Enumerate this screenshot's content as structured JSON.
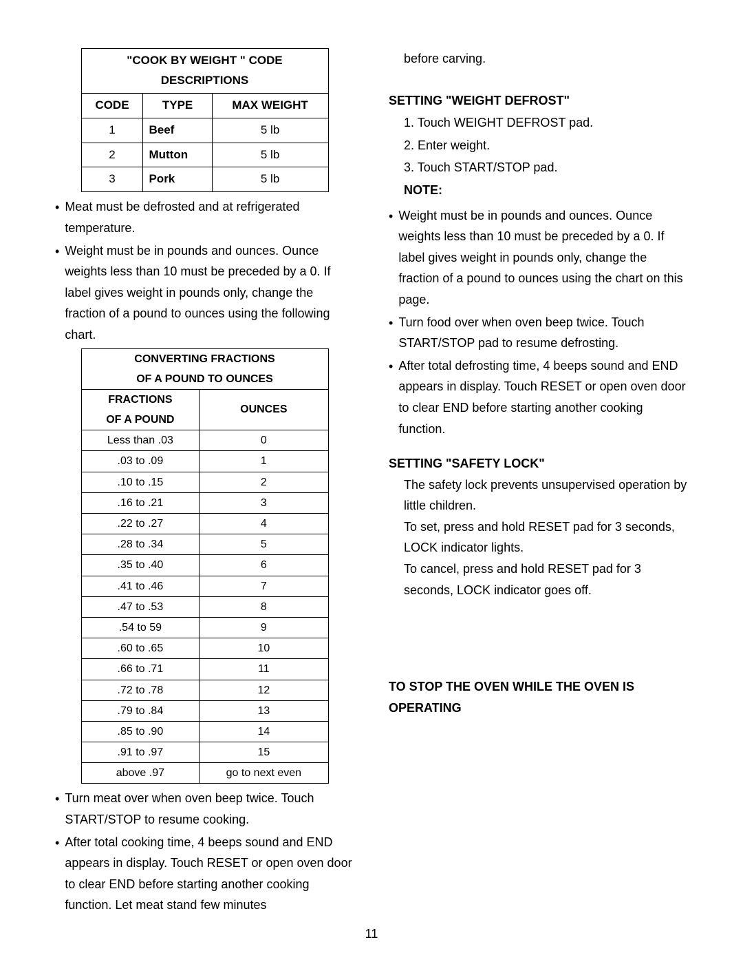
{
  "left": {
    "codeTable": {
      "title": "\"COOK BY WEIGHT \" CODE DESCRIPTIONS",
      "headers": [
        "CODE",
        "TYPE",
        "MAX WEIGHT"
      ],
      "rows": [
        [
          "1",
          "Beef",
          "5 lb"
        ],
        [
          "2",
          "Mutton",
          "5 lb"
        ],
        [
          "3",
          "Pork",
          "5 lb"
        ]
      ]
    },
    "bullet1": "Meat must be defrosted and at refrigerated temperature.",
    "bullet2": "Weight must be in pounds and ounces. Ounce weights less than 10 must be preceded by a 0. If label gives weight in pounds only, change the fraction of a pound to ounces using the following chart.",
    "convTable": {
      "title1": "CONVERTING FRACTIONS",
      "title2": "OF A POUND TO OUNCES",
      "head1a": "FRACTIONS",
      "head1b": "OF A POUND",
      "head2": "OUNCES",
      "rows": [
        [
          "Less than .03",
          "0"
        ],
        [
          ".03 to .09",
          "1"
        ],
        [
          ".10 to .15",
          "2"
        ],
        [
          ".16 to .21",
          "3"
        ],
        [
          ".22 to .27",
          "4"
        ],
        [
          ".28 to .34",
          "5"
        ],
        [
          ".35 to .40",
          "6"
        ],
        [
          ".41 to .46",
          "7"
        ],
        [
          ".47 to .53",
          "8"
        ],
        [
          ".54 to 59",
          "9"
        ],
        [
          ".60 to .65",
          "10"
        ],
        [
          ".66 to .71",
          "11"
        ],
        [
          ".72 to .78",
          "12"
        ],
        [
          ".79 to .84",
          "13"
        ],
        [
          ".85 to .90",
          "14"
        ],
        [
          ".91 to .97",
          "15"
        ],
        [
          "above .97",
          "go to next even"
        ]
      ]
    },
    "bullet3": "Turn meat over when oven beep twice. Touch START/STOP to resume cooking.",
    "bullet4": "After total cooking time, 4 beeps sound and END appears in display. Touch RESET or open oven door to clear END before starting another cooking function. Let meat stand few minutes"
  },
  "right": {
    "continuation": "before carving.",
    "heading1": "SETTING \"WEIGHT DEFROST\"",
    "steps": [
      "1.   Touch WEIGHT DEFROST pad.",
      "2.   Enter weight.",
      "3.   Touch START/STOP pad."
    ],
    "noteLabel": "NOTE:",
    "bullets": [
      "Weight must be in pounds and ounces. Ounce weights less than 10 must be preceded by a 0. If label gives weight in pounds only, change the fraction of a pound to ounces using the chart on this page.",
      "Turn food over when oven beep twice. Touch START/STOP pad to resume defrosting.",
      "After total defrosting time, 4 beeps sound and END appears in display. Touch RESET or open oven door to clear END before starting another cooking function."
    ],
    "heading2": "SETTING \"SAFETY LOCK\"",
    "safetyText": "The safety lock prevents unsupervised operation by little children.\nTo set, press and hold RESET pad for 3 seconds, LOCK indicator lights.\nTo cancel, press and hold RESET pad for 3 seconds, LOCK indicator goes off.",
    "heading3": "TO STOP THE OVEN WHILE THE OVEN IS OPERATING"
  },
  "pageNumber": "11"
}
